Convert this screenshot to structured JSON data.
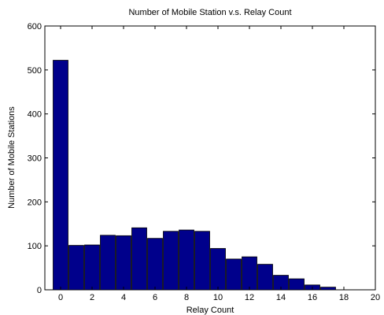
{
  "chart_data": {
    "type": "bar",
    "title": "Number of Mobile Station v.s. Relay Count",
    "xlabel": "Relay Count",
    "ylabel": "Number of Mobile Stations",
    "xlim": [
      -1,
      20
    ],
    "ylim": [
      0,
      600
    ],
    "xticks": [
      "0",
      "2",
      "4",
      "6",
      "8",
      "10",
      "12",
      "14",
      "16",
      "18",
      "20"
    ],
    "yticks": [
      "0",
      "100",
      "200",
      "300",
      "400",
      "500",
      "600"
    ],
    "bar_color": "#00008B",
    "bar_width": 0.95,
    "bars": [
      {
        "x": 0,
        "value": 522
      },
      {
        "x": 1,
        "value": 101
      },
      {
        "x": 2,
        "value": 102
      },
      {
        "x": 3,
        "value": 124
      },
      {
        "x": 4,
        "value": 123
      },
      {
        "x": 5,
        "value": 141
      },
      {
        "x": 6,
        "value": 117
      },
      {
        "x": 7,
        "value": 133
      },
      {
        "x": 8,
        "value": 136
      },
      {
        "x": 9,
        "value": 133
      },
      {
        "x": 10,
        "value": 94
      },
      {
        "x": 11,
        "value": 70
      },
      {
        "x": 12,
        "value": 75
      },
      {
        "x": 13,
        "value": 58
      },
      {
        "x": 14,
        "value": 33
      },
      {
        "x": 15,
        "value": 25
      },
      {
        "x": 16,
        "value": 11
      },
      {
        "x": 17,
        "value": 6
      }
    ]
  }
}
